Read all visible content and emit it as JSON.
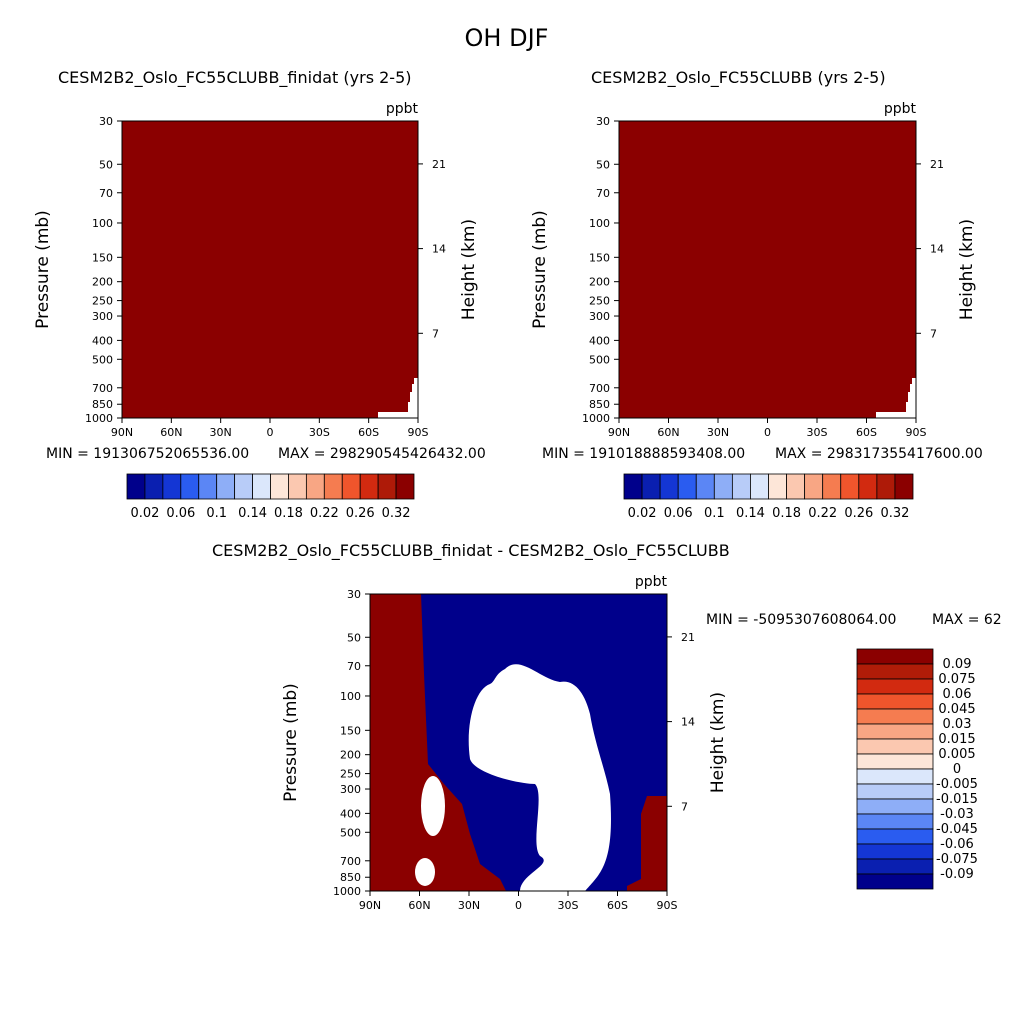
{
  "page_title": "OH DJF",
  "chart_data": [
    {
      "type": "heatmap",
      "title": "CESM2B2_Oslo_FC55CLUBB_finidat (yrs 2-5)",
      "units": "ppbt",
      "ylabel": "Pressure (mb)",
      "ylabel_right": "Height (km)",
      "x_ticks": [
        "90N",
        "60N",
        "30N",
        "0",
        "30S",
        "60S",
        "90S"
      ],
      "y_ticks": [
        "30",
        "50",
        "70",
        "100",
        "150",
        "200",
        "250",
        "300",
        "400",
        "500",
        "700",
        "850",
        "1000"
      ],
      "y_ticks_values": [
        30,
        50,
        70,
        100,
        150,
        200,
        250,
        300,
        400,
        500,
        700,
        850,
        1000
      ],
      "height_ticks": [
        "21",
        "14",
        "7"
      ],
      "height_values": [
        21,
        14,
        7
      ],
      "min_text": "MIN = 191306752065536.00",
      "max_text": "MAX = 298290545426432.00",
      "fill_color": "#8b0000",
      "colorbar_labels": [
        "0.02",
        "0.06",
        "0.1",
        "0.14",
        "0.18",
        "0.22",
        "0.26",
        "0.32"
      ],
      "colorbar_colors": [
        "#00008b",
        "#0a1fb0",
        "#1436d4",
        "#2a5cf0",
        "#5b86f5",
        "#8eaef7",
        "#b8ccf8",
        "#dbe7fb",
        "#fde6d8",
        "#fbc8b0",
        "#f8a684",
        "#f57c50",
        "#f0552c",
        "#d22a10",
        "#ae1a08",
        "#8b0000"
      ]
    },
    {
      "type": "heatmap",
      "title": "CESM2B2_Oslo_FC55CLUBB (yrs 2-5)",
      "units": "ppbt",
      "ylabel": "Pressure (mb)",
      "ylabel_right": "Height (km)",
      "x_ticks": [
        "90N",
        "60N",
        "30N",
        "0",
        "30S",
        "60S",
        "90S"
      ],
      "y_ticks": [
        "30",
        "50",
        "70",
        "100",
        "150",
        "200",
        "250",
        "300",
        "400",
        "500",
        "700",
        "850",
        "1000"
      ],
      "y_ticks_values": [
        30,
        50,
        70,
        100,
        150,
        200,
        250,
        300,
        400,
        500,
        700,
        850,
        1000
      ],
      "height_ticks": [
        "21",
        "14",
        "7"
      ],
      "height_values": [
        21,
        14,
        7
      ],
      "min_text": "MIN = 191018888593408.00",
      "max_text": "MAX = 298317355417600.00",
      "fill_color": "#8b0000",
      "colorbar_labels": [
        "0.02",
        "0.06",
        "0.1",
        "0.14",
        "0.18",
        "0.22",
        "0.26",
        "0.32"
      ],
      "colorbar_colors": [
        "#00008b",
        "#0a1fb0",
        "#1436d4",
        "#2a5cf0",
        "#5b86f5",
        "#8eaef7",
        "#b8ccf8",
        "#dbe7fb",
        "#fde6d8",
        "#fbc8b0",
        "#f8a684",
        "#f57c50",
        "#f0552c",
        "#d22a10",
        "#ae1a08",
        "#8b0000"
      ]
    },
    {
      "type": "heatmap",
      "title": "CESM2B2_Oslo_FC55CLUBB_finidat - CESM2B2_Oslo_FC55CLUBB",
      "units": "ppbt",
      "ylabel": "Pressure (mb)",
      "ylabel_right": "Height (km)",
      "x_ticks": [
        "90N",
        "60N",
        "30N",
        "0",
        "30S",
        "60S",
        "90S"
      ],
      "y_ticks": [
        "30",
        "50",
        "70",
        "100",
        "150",
        "200",
        "250",
        "300",
        "400",
        "500",
        "700",
        "850",
        "1000"
      ],
      "y_ticks_values": [
        30,
        50,
        70,
        100,
        150,
        200,
        250,
        300,
        400,
        500,
        700,
        850,
        1000
      ],
      "height_ticks": [
        "21",
        "14",
        "7"
      ],
      "height_values": [
        21,
        14,
        7
      ],
      "min_text": "MIN = -5095307608064.00",
      "max_text": "MAX = 62",
      "positive_color": "#8b0000",
      "negative_color": "#00008b",
      "colorbar_labels": [
        "0.09",
        "0.075",
        "0.06",
        "0.045",
        "0.03",
        "0.015",
        "0.005",
        "0",
        "-0.005",
        "-0.015",
        "-0.03",
        "-0.045",
        "-0.06",
        "-0.075",
        "-0.09"
      ],
      "colorbar_colors": [
        "#8b0000",
        "#b01c08",
        "#d22a10",
        "#f0552c",
        "#f57c50",
        "#f8a684",
        "#fbc8b0",
        "#fde6d8",
        "#dbe7fb",
        "#b8ccf8",
        "#8eaef7",
        "#5b86f5",
        "#2a5cf0",
        "#1436d4",
        "#0a1fb0",
        "#00008b"
      ]
    }
  ]
}
